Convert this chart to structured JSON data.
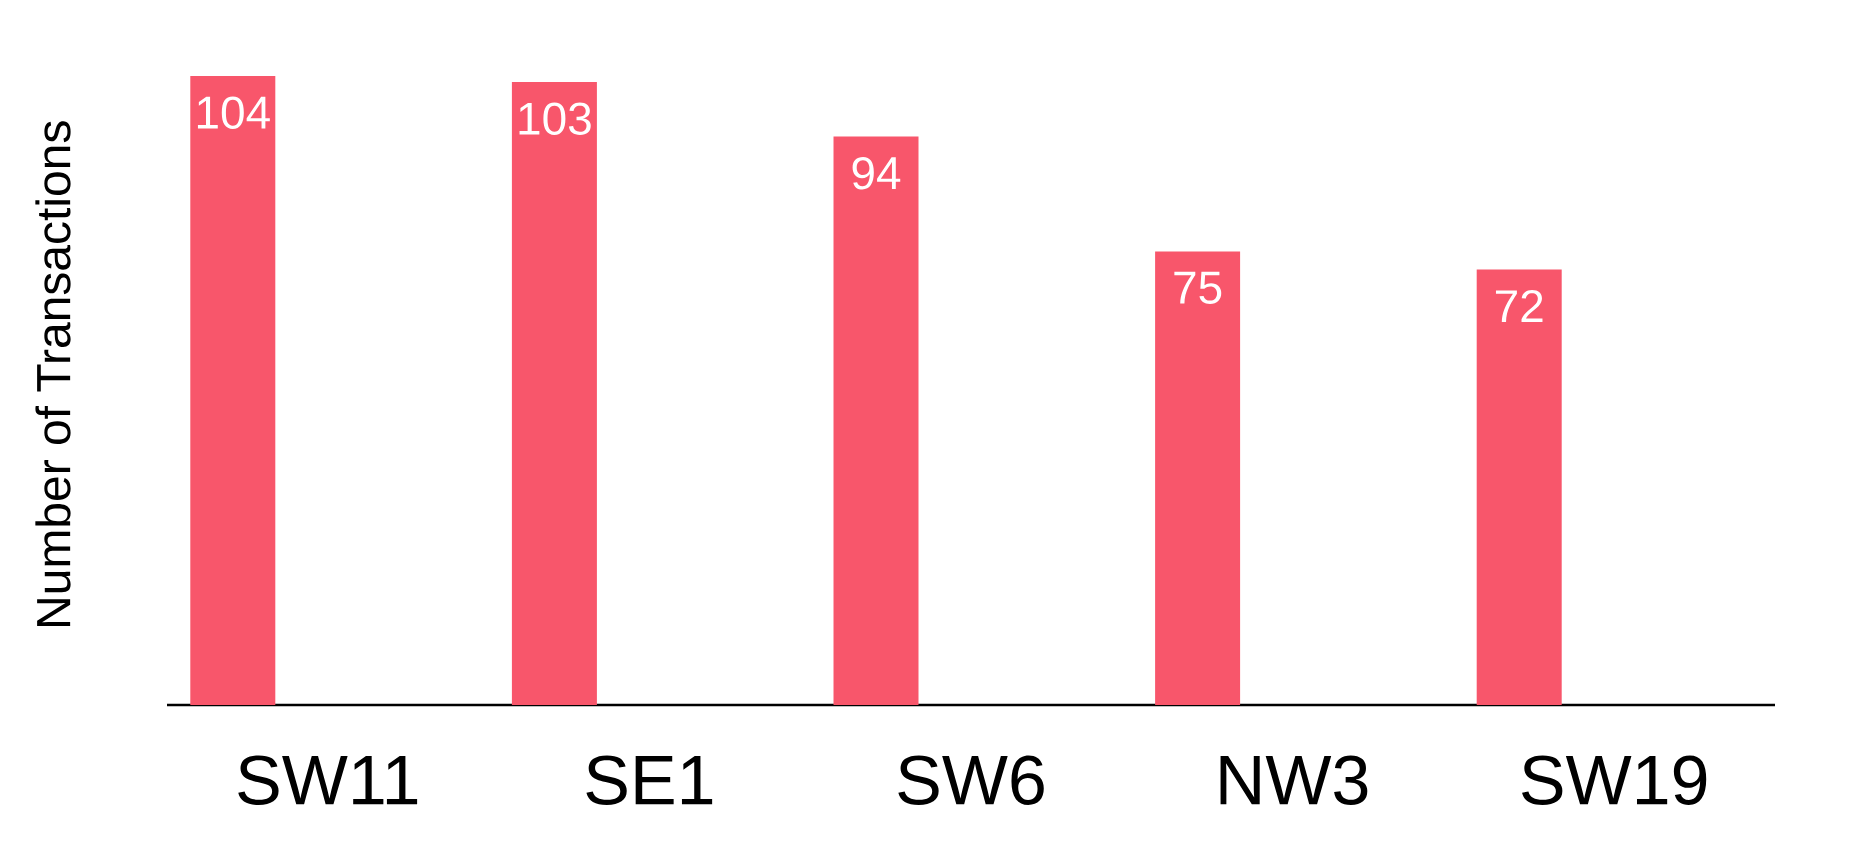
{
  "chart_data": {
    "type": "bar",
    "ylabel": "Number of Transactions",
    "categories": [
      "SW11",
      "SE1",
      "SW6",
      "NW3",
      "SW19"
    ],
    "values": [
      104,
      103,
      94,
      75,
      72
    ],
    "color": "#f8566b",
    "data_labels": true
  }
}
